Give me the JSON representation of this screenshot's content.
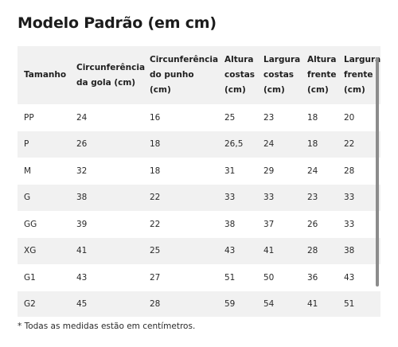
{
  "title": "Modelo Padrão (em cm)",
  "table": {
    "headers": [
      [
        "Tamanho"
      ],
      [
        "Circunferência",
        "da gola (cm)"
      ],
      [
        "Circunferência",
        "do punho",
        "(cm)"
      ],
      [
        "Altura",
        "costas",
        "(cm)"
      ],
      [
        "Largura",
        "costas",
        "(cm)"
      ],
      [
        "Altura",
        "frente",
        "(cm)"
      ],
      [
        "Largura",
        "frente",
        "(cm)"
      ]
    ],
    "rows": [
      [
        "PP",
        "24",
        "16",
        "25",
        "23",
        "18",
        "20"
      ],
      [
        "P",
        "26",
        "18",
        "26,5",
        "24",
        "18",
        "22"
      ],
      [
        "M",
        "32",
        "18",
        "31",
        "29",
        "24",
        "28"
      ],
      [
        "G",
        "38",
        "22",
        "33",
        "33",
        "23",
        "33"
      ],
      [
        "GG",
        "39",
        "22",
        "38",
        "37",
        "26",
        "33"
      ],
      [
        "XG",
        "41",
        "25",
        "43",
        "41",
        "28",
        "38"
      ],
      [
        "G1",
        "43",
        "27",
        "51",
        "50",
        "36",
        "43"
      ],
      [
        "G2",
        "45",
        "28",
        "59",
        "54",
        "41",
        "51"
      ]
    ]
  },
  "footnote": "* Todas as medidas estão em centímetros.",
  "colors": {
    "striped_row": "#f1f1f1",
    "text": "#1f1f1f",
    "scrollbar": "#8c8c8c"
  }
}
